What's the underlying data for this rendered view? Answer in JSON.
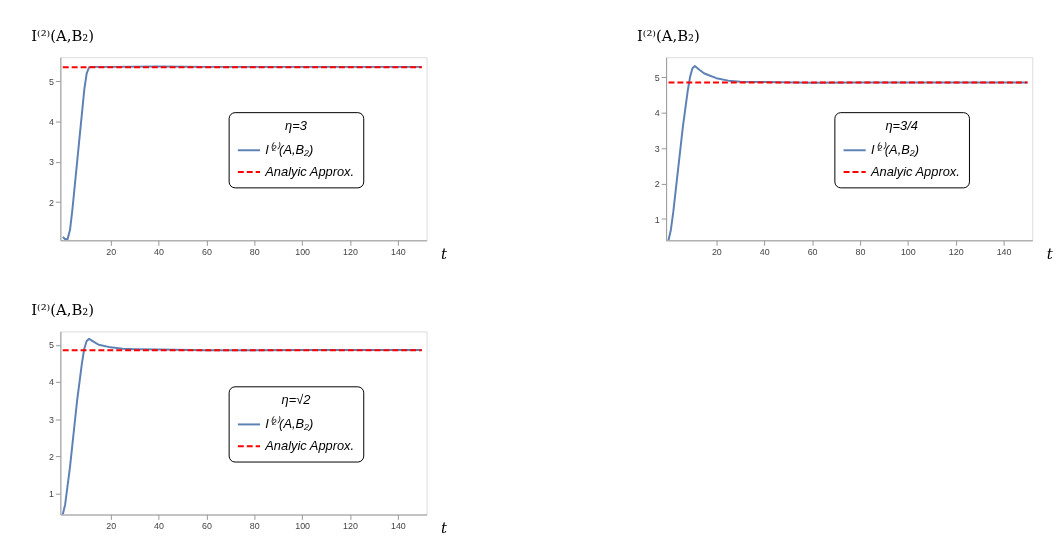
{
  "chart_data": [
    {
      "type": "line",
      "ylabel": "I⁽²⁾(A,B₂)",
      "xlabel": "t",
      "legend_title": "η=3",
      "legend": "right",
      "marker": "none",
      "xlim": [
        -1,
        152
      ],
      "ylim": [
        1.05,
        5.6
      ],
      "xticks": [
        20,
        40,
        60,
        80,
        100,
        120,
        140
      ],
      "yticks": [
        2,
        3,
        4,
        5
      ],
      "series": [
        {
          "name": "I⁽²⁾(A,B₂)",
          "color": "#5e81b5",
          "line_style": "solid",
          "x": [
            0,
            1,
            2,
            3,
            4,
            5,
            6,
            7,
            8,
            9,
            10,
            11,
            12,
            20,
            40,
            60,
            100,
            150
          ],
          "values": [
            1.13,
            1.08,
            1.08,
            1.3,
            1.8,
            2.4,
            3.0,
            3.6,
            4.2,
            4.8,
            5.2,
            5.35,
            5.36,
            5.36,
            5.37,
            5.36,
            5.36,
            5.36
          ]
        },
        {
          "name": "Analyic Approx.",
          "color": "#ff0000",
          "line_style": "dashed",
          "x": [
            0,
            150
          ],
          "values": [
            5.35,
            5.35
          ]
        }
      ]
    },
    {
      "type": "line",
      "ylabel": "I⁽²⁾(A,B₂)",
      "xlabel": "t",
      "legend_title": "η=3/4",
      "legend": "right",
      "marker": "none",
      "xlim": [
        -1,
        152
      ],
      "ylim": [
        0.4,
        5.56
      ],
      "xticks": [
        20,
        40,
        60,
        80,
        100,
        120,
        140
      ],
      "yticks": [
        1,
        2,
        3,
        4,
        5
      ],
      "series": [
        {
          "name": "I⁽²⁾(A,B₂)",
          "color": "#5e81b5",
          "line_style": "solid",
          "x": [
            0,
            1,
            2,
            3,
            4,
            5,
            6,
            7,
            8,
            9,
            10,
            11,
            13,
            15,
            20,
            25,
            30,
            40,
            60,
            80,
            100,
            150
          ],
          "values": [
            0.4,
            0.7,
            1.2,
            1.8,
            2.4,
            3.0,
            3.6,
            4.1,
            4.6,
            5.0,
            5.25,
            5.31,
            5.2,
            5.1,
            4.97,
            4.9,
            4.87,
            4.86,
            4.84,
            4.85,
            4.85,
            4.85
          ]
        },
        {
          "name": "Analyic Approx.",
          "color": "#ff0000",
          "line_style": "dashed",
          "x": [
            0,
            150
          ],
          "values": [
            4.85,
            4.85
          ]
        }
      ]
    },
    {
      "type": "line",
      "ylabel": "I⁽²⁾(A,B₂)",
      "xlabel": "t",
      "legend_title": "η=√2",
      "legend": "right",
      "marker": "none",
      "xlim": [
        -1,
        152
      ],
      "ylim": [
        0.43,
        5.36
      ],
      "xticks": [
        20,
        40,
        60,
        80,
        100,
        120,
        140
      ],
      "yticks": [
        1,
        2,
        3,
        4,
        5
      ],
      "series": [
        {
          "name": "I⁽²⁾(A,B₂)",
          "color": "#5e81b5",
          "line_style": "solid",
          "x": [
            0,
            1,
            2,
            3,
            4,
            5,
            6,
            7,
            8,
            9,
            10,
            11,
            13,
            15,
            20,
            25,
            30,
            40,
            60,
            80,
            100,
            150
          ],
          "values": [
            0.43,
            0.7,
            1.2,
            1.7,
            2.3,
            2.9,
            3.5,
            4.0,
            4.5,
            4.9,
            5.1,
            5.16,
            5.08,
            5.0,
            4.93,
            4.89,
            4.88,
            4.87,
            4.85,
            4.85,
            4.86,
            4.86
          ]
        },
        {
          "name": "Analyic Approx.",
          "color": "#ff0000",
          "line_style": "dashed",
          "x": [
            0,
            150
          ],
          "values": [
            4.85,
            4.85
          ]
        }
      ]
    }
  ]
}
